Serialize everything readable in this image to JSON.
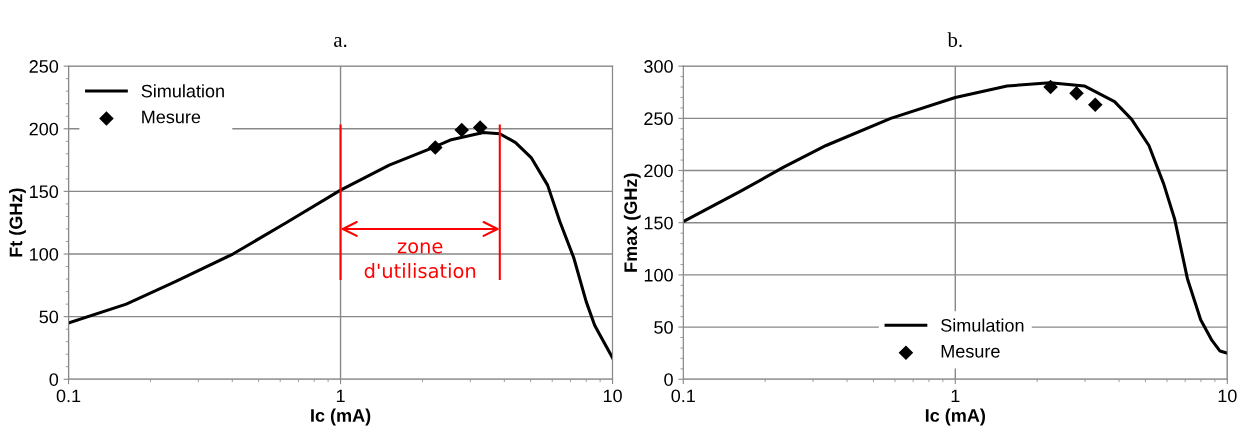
{
  "chart_data": [
    {
      "type": "line",
      "title": "a.",
      "xlabel": "Ic (mA)",
      "ylabel": "Ft (GHz)",
      "log": "x",
      "xlim": [
        0.1,
        10
      ],
      "xticks": [
        0.1,
        1,
        10
      ],
      "ylim": [
        0,
        250
      ],
      "yticks": [
        0,
        50,
        100,
        150,
        200,
        250
      ],
      "grid": true,
      "legend": "top left",
      "series": [
        {
          "name": "Simulation",
          "color": "#000000",
          "marker": "none",
          "line_style": "solid",
          "x": [
            0.1,
            0.163,
            0.247,
            0.402,
            0.631,
            1,
            1.51,
            2.13,
            2.53,
            3.35,
            3.85,
            4.4,
            5.02,
            5.77,
            6.4,
            7.2,
            8.0,
            8.6,
            10
          ],
          "values": [
            45,
            60,
            78,
            100,
            125,
            151,
            171,
            184,
            191,
            197,
            196,
            189,
            177,
            155,
            126,
            97,
            62,
            43,
            17
          ]
        },
        {
          "name": "Mesure",
          "type": "scatter",
          "color": "#000000",
          "marker": "diamond",
          "x": [
            2.23,
            2.79,
            3.26
          ],
          "values": [
            185,
            199,
            201
          ]
        }
      ],
      "ref_lines": [
        {
          "axis": "x",
          "value": 1,
          "color": "#ff0000"
        },
        {
          "axis": "x",
          "value": 3.85,
          "color": "#ff0000"
        }
      ],
      "annotations": [
        "zone d'utilisation"
      ]
    },
    {
      "type": "line",
      "title": "b.",
      "xlabel": "Ic (mA)",
      "ylabel": "Fmax (GHz)",
      "log": "x",
      "xlim": [
        0.1,
        10
      ],
      "xticks": [
        0.1,
        1,
        10
      ],
      "ylim": [
        0,
        300
      ],
      "yticks": [
        0,
        50,
        100,
        150,
        200,
        250,
        300
      ],
      "grid": true,
      "legend": "bottom",
      "series": [
        {
          "name": "Simulation",
          "color": "#000000",
          "marker": "none",
          "line_style": "solid",
          "x": [
            0.1,
            0.162,
            0.233,
            0.335,
            0.579,
            1,
            1.55,
            2.23,
            2.98,
            3.85,
            4.45,
            5.15,
            5.84,
            6.41,
            7.14,
            7.98,
            8.74,
            9.4,
            10
          ],
          "values": [
            151,
            180,
            203,
            224,
            250,
            270,
            281,
            284,
            281,
            266,
            249,
            224,
            187,
            153,
            96,
            57,
            38,
            27,
            25
          ]
        },
        {
          "name": "Mesure",
          "type": "scatter",
          "color": "#000000",
          "marker": "diamond",
          "x": [
            2.24,
            2.79,
            3.27
          ],
          "values": [
            280,
            274,
            263
          ]
        }
      ]
    }
  ]
}
